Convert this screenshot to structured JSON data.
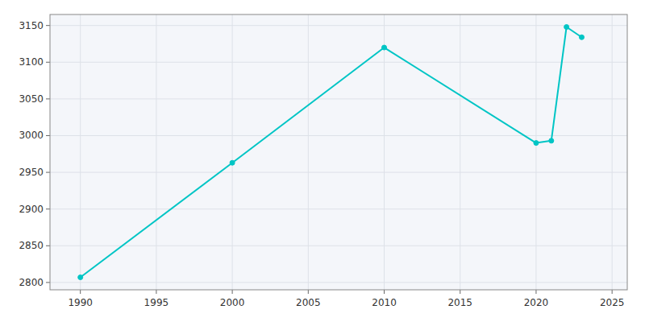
{
  "chart_data": {
    "type": "line",
    "x": [
      1990,
      2000,
      2010,
      2020,
      2021,
      2022,
      2023
    ],
    "values": [
      2807,
      2963,
      3120,
      2990,
      2993,
      3148,
      3134
    ],
    "color": "#00C5C5",
    "marker": "circle",
    "xlim": [
      1988,
      2026
    ],
    "ylim": [
      2790,
      3165
    ],
    "xticks": [
      1990,
      1995,
      2000,
      2005,
      2010,
      2015,
      2020,
      2025
    ],
    "yticks": [
      2800,
      2850,
      2900,
      2950,
      3000,
      3050,
      3100,
      3150
    ],
    "grid": true
  }
}
